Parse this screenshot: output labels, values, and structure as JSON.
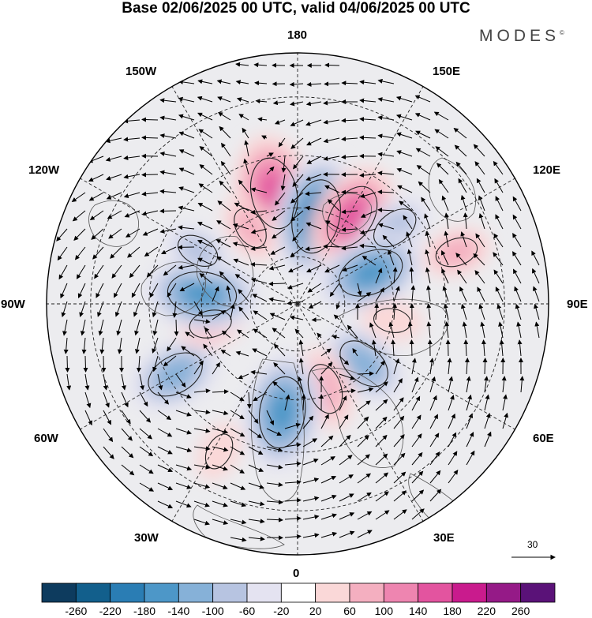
{
  "title": "Base 02/06/2025 00 UTC, valid 04/06/2025 00 UTC",
  "brand": {
    "text": "MODES",
    "mark": "©"
  },
  "longitude_labels": {
    "lon_180": "180",
    "lon_150e": "150E",
    "lon_120e": "120E",
    "lon_90e": "90E",
    "lon_60e": "60E",
    "lon_30e": "30E",
    "lon_0": "0",
    "lon_30w": "30W",
    "lon_60w": "60W",
    "lon_90w": "90W",
    "lon_120w": "120W",
    "lon_150w": "150W"
  },
  "reference_vector": {
    "label": "30"
  },
  "colorbar": {
    "ticks": [
      "-260",
      "-220",
      "-180",
      "-140",
      "-100",
      "-60",
      "-20",
      "20",
      "60",
      "100",
      "140",
      "180",
      "220",
      "260"
    ],
    "colors": [
      "#0d3b5e",
      "#125f8c",
      "#2a7db4",
      "#4d97c8",
      "#86b1d8",
      "#b7c4e1",
      "#e4e3f1",
      "#ffffff",
      "#fad8d8",
      "#f4afc0",
      "#ee85b0",
      "#e3549f",
      "#c91b8d",
      "#951a87",
      "#5a1278"
    ]
  },
  "map_data": {
    "projection": "north-polar-stereographic",
    "boundary_latitude_deg": 20,
    "graticule": {
      "latitude_circles_deg": [
        30,
        45,
        60,
        75
      ],
      "meridian_step_deg": 30
    },
    "anomaly_centers": [
      {
        "lon": -168,
        "lat": 55,
        "value": 170,
        "label": "positive"
      },
      {
        "lon": 168,
        "lat": 62,
        "value": -180,
        "label": "negative"
      },
      {
        "lon": 148,
        "lat": 58,
        "value": 150,
        "label": "positive"
      },
      {
        "lon": 128,
        "lat": 52,
        "value": -80,
        "label": "negative"
      },
      {
        "lon": 113,
        "lat": 65,
        "value": -150,
        "label": "negative"
      },
      {
        "lon": 108,
        "lat": 40,
        "value": 60,
        "label": "positive"
      },
      {
        "lon": 80,
        "lat": 60,
        "value": 40,
        "label": "positive"
      },
      {
        "lon": 48,
        "lat": 62,
        "value": -110,
        "label": "negative"
      },
      {
        "lon": 18,
        "lat": 62,
        "value": 90,
        "label": "positive"
      },
      {
        "lon": -8,
        "lat": 56,
        "value": -170,
        "label": "negative"
      },
      {
        "lon": -28,
        "lat": 40,
        "value": 40,
        "label": "positive"
      },
      {
        "lon": -60,
        "lat": 47,
        "value": -120,
        "label": "negative"
      },
      {
        "lon": -77,
        "lat": 62,
        "value": 60,
        "label": "positive"
      },
      {
        "lon": -96,
        "lat": 60,
        "value": -160,
        "label": "negative"
      },
      {
        "lon": -118,
        "lat": 55,
        "value": -60,
        "label": "negative"
      },
      {
        "lon": -148,
        "lat": 62,
        "value": 60,
        "label": "positive"
      }
    ]
  }
}
